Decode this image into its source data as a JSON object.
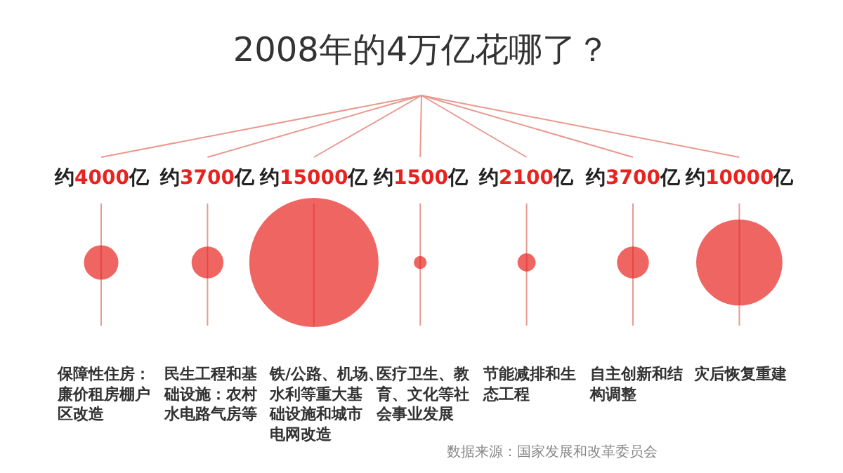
{
  "chart_data": {
    "type": "other",
    "title": "2008年的4万亿花哪了？",
    "categories": [
      "保障性住房：廉价租房棚户区改造",
      "民生工程和基础设施：农村水电路气房等",
      "铁/公路、机场、水利等重大基础设施和城市电网改造",
      "医疗卫生、教育、文化等社会事业发展",
      "节能减排和生态工程",
      "自主创新和结构调整",
      "灾后恢复重建"
    ],
    "values": [
      4000,
      3700,
      15000,
      1500,
      2100,
      3700,
      10000
    ],
    "value_labels": [
      "约4000亿",
      "约3700亿",
      "约15000亿",
      "约1500亿",
      "约2100亿",
      "约3700亿",
      "约10000亿"
    ],
    "color": "#e8231f",
    "annotations": [
      "数据来源：国家发展和改革委员会"
    ]
  }
}
